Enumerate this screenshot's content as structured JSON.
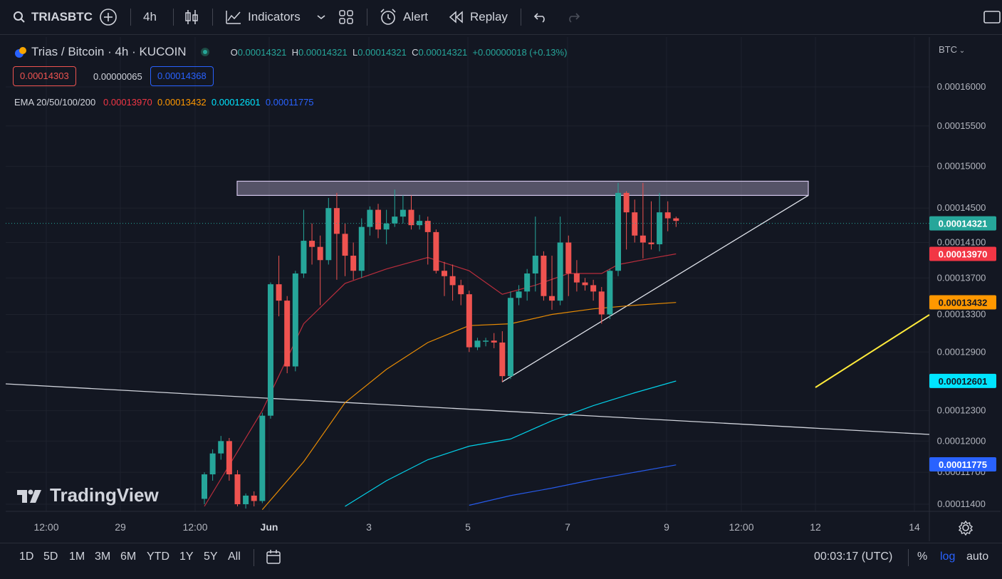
{
  "toolbar": {
    "symbol": "TRIASBTC",
    "interval": "4h",
    "indicators_label": "Indicators",
    "alert_label": "Alert",
    "replay_label": "Replay"
  },
  "legend": {
    "title": "Trias / Bitcoin · 4h · KUCOIN",
    "o_label": "O",
    "o_value": "0.00014321",
    "h_label": "H",
    "h_value": "0.00014321",
    "l_label": "L",
    "l_value": "0.00014321",
    "c_label": "C",
    "c_value": "0.00014321",
    "change": "+0.00000018 (+0.13%)",
    "bid": "0.00014303",
    "spread": "0.00000065",
    "ask": "0.00014368",
    "ema_label": "EMA 20/50/100/200",
    "ema_values": [
      "0.00013970",
      "0.00013432",
      "0.00012601",
      "0.00011775"
    ]
  },
  "currency_label": "BTC",
  "watermark": "TradingView",
  "bottom": {
    "timeframes": [
      "1D",
      "5D",
      "1M",
      "3M",
      "6M",
      "YTD",
      "1Y",
      "5Y",
      "All"
    ],
    "clock": "00:03:17 (UTC)",
    "percent": "%",
    "log": "log",
    "auto": "auto"
  },
  "colors": {
    "up": "#26a69a",
    "down": "#ef5350",
    "ema20": "#f23645",
    "ema50": "#ff9800",
    "ema100": "#00e5ff",
    "ema200": "#2962ff",
    "yellow_line": "#ffeb3b"
  },
  "chart_data": {
    "type": "candlestick",
    "y_ticks": [
      "0.00016000",
      "0.00015500",
      "0.00015000",
      "0.00014500",
      "0.00014100",
      "0.00013700",
      "0.00013300",
      "0.00012900",
      "0.00012300",
      "0.00012000",
      "0.00011700",
      "0.00011400"
    ],
    "x_ticks": [
      "12:00",
      "29",
      "12:00",
      "Jun",
      "3",
      "5",
      "7",
      "9",
      "12:00",
      "12",
      "14"
    ],
    "price_labels": [
      {
        "value": "0.00014321",
        "color": "#26a69a",
        "price": 0.00014321
      },
      {
        "value": "0.00013970",
        "color": "#f23645",
        "price": 0.0001397
      },
      {
        "value": "0.00013432",
        "color": "#ff9800",
        "price": 0.00013432
      },
      {
        "value": "0.00012601",
        "color": "#00e5ff",
        "price": 0.00012601
      },
      {
        "value": "0.00011775",
        "color": "#2962ff",
        "price": 0.00011775
      }
    ],
    "candles": [
      [
        0.0001145,
        0.0001168,
        0.000114,
        0.000117
      ],
      [
        0.0001168,
        0.0001188,
        0.0001162,
        0.0001192
      ],
      [
        0.0001188,
        0.00012,
        0.0001182,
        0.0001205
      ],
      [
        0.00012,
        0.0001168,
        0.0001162,
        0.0001203
      ],
      [
        0.0001168,
        0.000114,
        0.0001138,
        0.0001172
      ],
      [
        0.000114,
        0.0001148,
        0.0001136,
        0.000115
      ],
      [
        0.0001148,
        0.0001143,
        0.0001138,
        0.0001152
      ],
      [
        0.0001143,
        0.0001225,
        0.0001141,
        0.0001228
      ],
      [
        0.0001225,
        0.0001363,
        0.0001222,
        0.0001365
      ],
      [
        0.0001363,
        0.0001345,
        0.0001328,
        0.0001395
      ],
      [
        0.0001345,
        0.0001275,
        0.0001268,
        0.000135
      ],
      [
        0.0001275,
        0.0001375,
        0.000127,
        0.0001378
      ],
      [
        0.0001375,
        0.0001412,
        0.000137,
        0.0001448
      ],
      [
        0.0001412,
        0.0001405,
        0.0001385,
        0.0001432
      ],
      [
        0.0001405,
        0.000139,
        0.000134,
        0.0001418
      ],
      [
        0.000139,
        0.000145,
        0.0001385,
        0.0001462
      ],
      [
        0.000145,
        0.000142,
        0.0001368,
        0.0001468
      ],
      [
        0.000142,
        0.0001395,
        0.0001372,
        0.0001432
      ],
      [
        0.0001395,
        0.0001378,
        0.0001368,
        0.000141
      ],
      [
        0.0001378,
        0.0001428,
        0.000137,
        0.0001438
      ],
      [
        0.0001428,
        0.0001448,
        0.0001418,
        0.0001452
      ],
      [
        0.0001448,
        0.0001425,
        0.0001415,
        0.0001455
      ],
      [
        0.0001425,
        0.0001432,
        0.0001408,
        0.0001448
      ],
      [
        0.0001432,
        0.000144,
        0.0001428,
        0.0001472
      ],
      [
        0.000144,
        0.0001448,
        0.0001432,
        0.0001465
      ],
      [
        0.0001448,
        0.000143,
        0.0001425,
        0.0001465
      ],
      [
        0.000143,
        0.0001435,
        0.0001425,
        0.0001442
      ],
      [
        0.0001435,
        0.0001422,
        0.0001385,
        0.000144
      ],
      [
        0.0001422,
        0.0001378,
        0.0001375,
        0.0001425
      ],
      [
        0.0001378,
        0.0001372,
        0.000135,
        0.0001388
      ],
      [
        0.0001372,
        0.0001362,
        0.0001345,
        0.0001385
      ],
      [
        0.0001362,
        0.0001352,
        0.000134,
        0.0001368
      ],
      [
        0.0001352,
        0.0001295,
        0.000129,
        0.0001356
      ],
      [
        0.0001295,
        0.0001302,
        0.0001292,
        0.0001305
      ],
      [
        0.0001302,
        0.0001302,
        0.0001296,
        0.0001305
      ],
      [
        0.0001302,
        0.00013,
        0.0001294,
        0.000131
      ],
      [
        0.00013,
        0.0001265,
        0.0001259,
        0.0001312
      ],
      [
        0.0001265,
        0.0001348,
        0.0001262,
        0.0001355
      ],
      [
        0.0001348,
        0.0001355,
        0.000134,
        0.0001362
      ],
      [
        0.0001355,
        0.0001375,
        0.0001345,
        0.000138
      ],
      [
        0.0001375,
        0.0001395,
        0.0001355,
        0.000144
      ],
      [
        0.0001395,
        0.000135,
        0.0001345,
        0.00014
      ],
      [
        0.000135,
        0.0001345,
        0.0001335,
        0.0001395
      ],
      [
        0.0001345,
        0.000141,
        0.000134,
        0.000144
      ],
      [
        0.000141,
        0.0001375,
        0.000135,
        0.0001418
      ],
      [
        0.0001375,
        0.0001365,
        0.0001355,
        0.000139
      ],
      [
        0.0001365,
        0.0001362,
        0.0001356,
        0.000137
      ],
      [
        0.0001362,
        0.0001355,
        0.0001345,
        0.0001368
      ],
      [
        0.0001355,
        0.000133,
        0.000132,
        0.000136
      ],
      [
        0.000133,
        0.0001378,
        0.0001325,
        0.000138
      ],
      [
        0.0001378,
        0.0001468,
        0.0001372,
        0.000148
      ],
      [
        0.0001468,
        0.0001445,
        0.0001402,
        0.000147
      ],
      [
        0.0001445,
        0.0001418,
        0.000141,
        0.000146
      ],
      [
        0.0001418,
        0.000141,
        0.0001392,
        0.000148
      ],
      [
        0.000141,
        0.0001408,
        0.0001402,
        0.0001458
      ],
      [
        0.0001408,
        0.0001445,
        0.00014,
        0.0001468
      ],
      [
        0.0001445,
        0.0001438,
        0.0001423,
        0.0001458
      ],
      [
        0.0001438,
        0.0001435,
        0.0001428,
        0.000144
      ]
    ],
    "ema": {
      "ema20": [
        [
          0,
          0.0001138
        ],
        [
          7,
          0.000123
        ],
        [
          12,
          0.000132
        ],
        [
          17,
          0.0001364
        ],
        [
          22,
          0.000138
        ],
        [
          27,
          0.0001393
        ],
        [
          32,
          0.0001378
        ],
        [
          36,
          0.0001352
        ],
        [
          40,
          0.0001362
        ],
        [
          44,
          0.0001375
        ],
        [
          48,
          0.0001375
        ],
        [
          50,
          0.0001385
        ],
        [
          54,
          0.0001392
        ],
        [
          57,
          0.0001397
        ]
      ],
      "ema50": [
        [
          7,
          0.0001135
        ],
        [
          12,
          0.000118
        ],
        [
          17,
          0.0001238
        ],
        [
          22,
          0.0001272
        ],
        [
          27,
          0.00013
        ],
        [
          32,
          0.0001318
        ],
        [
          37,
          0.000132
        ],
        [
          42,
          0.000133
        ],
        [
          47,
          0.0001336
        ],
        [
          52,
          0.000134
        ],
        [
          57,
          0.0001343
        ]
      ],
      "ema100": [
        [
          17,
          0.0001138
        ],
        [
          22,
          0.0001162
        ],
        [
          27,
          0.0001182
        ],
        [
          32,
          0.0001195
        ],
        [
          37,
          0.0001202
        ],
        [
          42,
          0.000122
        ],
        [
          47,
          0.0001235
        ],
        [
          52,
          0.0001248
        ],
        [
          57,
          0.000126
        ]
      ],
      "ema200": [
        [
          32,
          0.0001139
        ],
        [
          37,
          0.0001148
        ],
        [
          42,
          0.0001155
        ],
        [
          47,
          0.0001163
        ],
        [
          52,
          0.000117
        ],
        [
          57,
          0.0001177
        ]
      ]
    },
    "resistance_zone": [
      0.0001465,
      0.0001482
    ],
    "current_price": 0.00014321
  }
}
